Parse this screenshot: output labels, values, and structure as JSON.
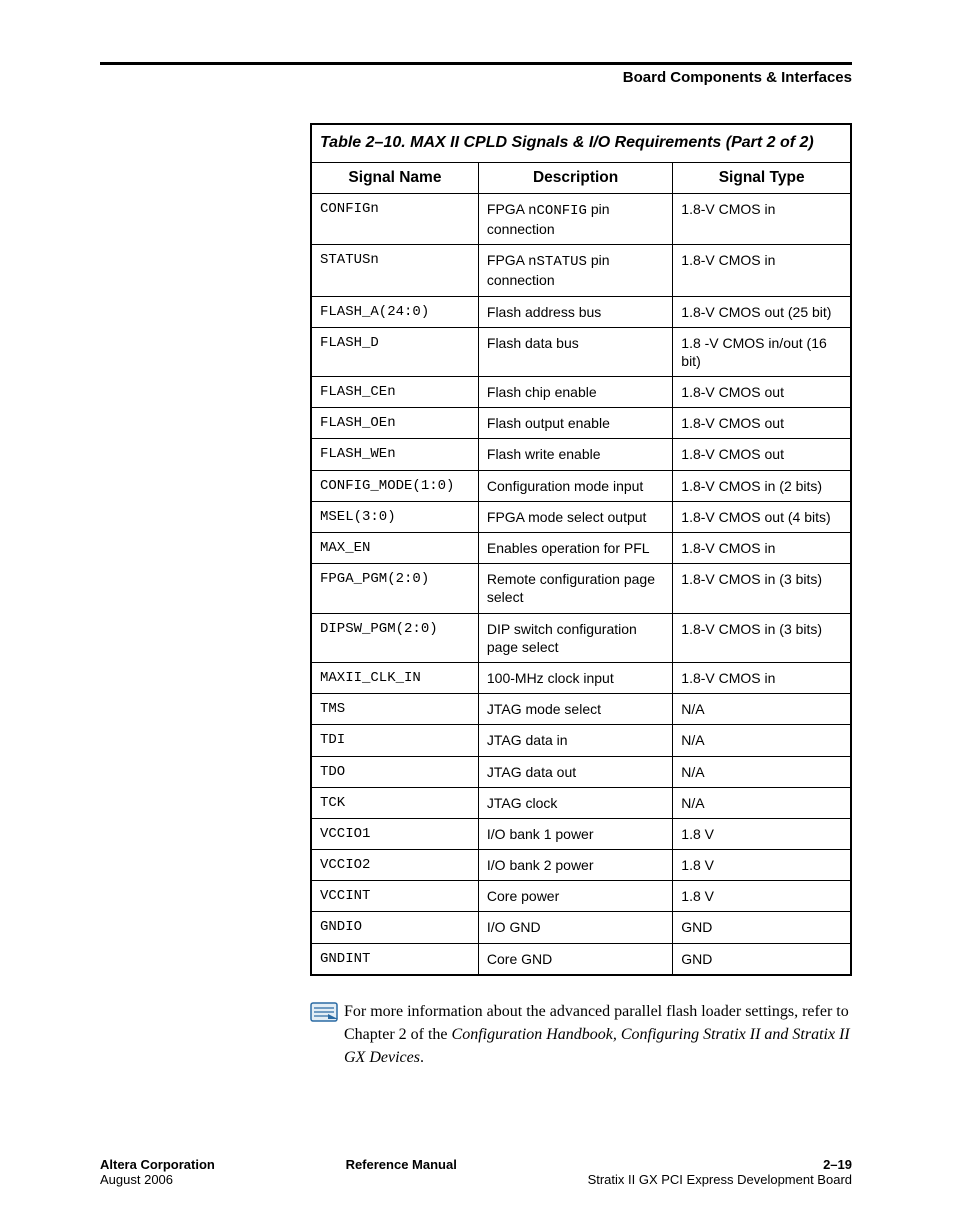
{
  "header": {
    "text": "Board Components & Interfaces"
  },
  "table": {
    "caption": "Table 2–10. MAX II CPLD Signals & I/O Requirements   (Part 2 of 2)",
    "columns": [
      "Signal Name",
      "Description",
      "Signal Type"
    ],
    "col_widths": [
      "31%",
      "36%",
      "33%"
    ],
    "rows": [
      {
        "sig": "CONFIGn",
        "desc_pre": "FPGA ",
        "desc_code": "nCONFIG",
        "desc_post": " pin connection",
        "type": "1.8-V CMOS in"
      },
      {
        "sig": "STATUSn",
        "desc_pre": "FPGA ",
        "desc_code": "nSTATUS",
        "desc_post": " pin connection",
        "type": "1.8-V CMOS in"
      },
      {
        "sig": "FLASH_A(24:0)",
        "desc": "Flash address bus",
        "type": "1.8-V CMOS out (25 bit)"
      },
      {
        "sig": "FLASH_D",
        "desc": "Flash data bus",
        "type": "1.8 -V CMOS in/out (16 bit)"
      },
      {
        "sig": "FLASH_CEn",
        "desc": "Flash chip enable",
        "type": "1.8-V CMOS out"
      },
      {
        "sig": "FLASH_OEn",
        "desc": "Flash output enable",
        "type": "1.8-V CMOS out"
      },
      {
        "sig": "FLASH_WEn",
        "desc": "Flash write enable",
        "type": "1.8-V CMOS out"
      },
      {
        "sig": "CONFIG_MODE(1:0)",
        "desc": "Configuration mode input",
        "type": "1.8-V CMOS in (2 bits)"
      },
      {
        "sig": "MSEL(3:0)",
        "desc": "FPGA mode select output",
        "type": "1.8-V CMOS out (4 bits)"
      },
      {
        "sig": "MAX_EN",
        "desc": "Enables operation for PFL",
        "type": "1.8-V CMOS in"
      },
      {
        "sig": "FPGA_PGM(2:0)",
        "desc": "Remote configuration page select",
        "type": "1.8-V CMOS in (3 bits)"
      },
      {
        "sig": "DIPSW_PGM(2:0)",
        "desc": "DIP switch configuration page select",
        "type": "1.8-V CMOS in (3 bits)"
      },
      {
        "sig": "MAXII_CLK_IN",
        "desc": "100-MHz clock input",
        "type": "1.8-V CMOS in"
      },
      {
        "sig": "TMS",
        "desc": "JTAG mode select",
        "type": "N/A"
      },
      {
        "sig": "TDI",
        "desc": "JTAG data in",
        "type": "N/A"
      },
      {
        "sig": "TDO",
        "desc": "JTAG data out",
        "type": "N/A"
      },
      {
        "sig": "TCK",
        "desc": "JTAG clock",
        "type": "N/A"
      },
      {
        "sig": "VCCIO1",
        "desc": "I/O bank 1 power",
        "type": "1.8 V"
      },
      {
        "sig": "VCCIO2",
        "desc": "I/O bank 2 power",
        "type": "1.8 V"
      },
      {
        "sig": "VCCINT",
        "desc": "Core power",
        "type": "1.8 V"
      },
      {
        "sig": "GNDIO",
        "desc": "I/O GND",
        "type": "GND"
      },
      {
        "sig": "GNDINT",
        "desc": "Core GND",
        "type": "GND"
      }
    ]
  },
  "note": {
    "pre": "For more information about the advanced parallel flash loader settings, refer to Chapter 2 of the ",
    "ital": "Configuration Handbook, Configuring Stratix II and Stratix II GX Devices",
    "post": "."
  },
  "footer": {
    "left1": "Altera Corporation",
    "left2": "August 2006",
    "center": "Reference Manual",
    "right1": "2–19",
    "right2": "Stratix II GX PCI Express Development Board"
  },
  "icon_colors": {
    "stroke": "#2a6aa3",
    "fill": "#e3eef6"
  }
}
